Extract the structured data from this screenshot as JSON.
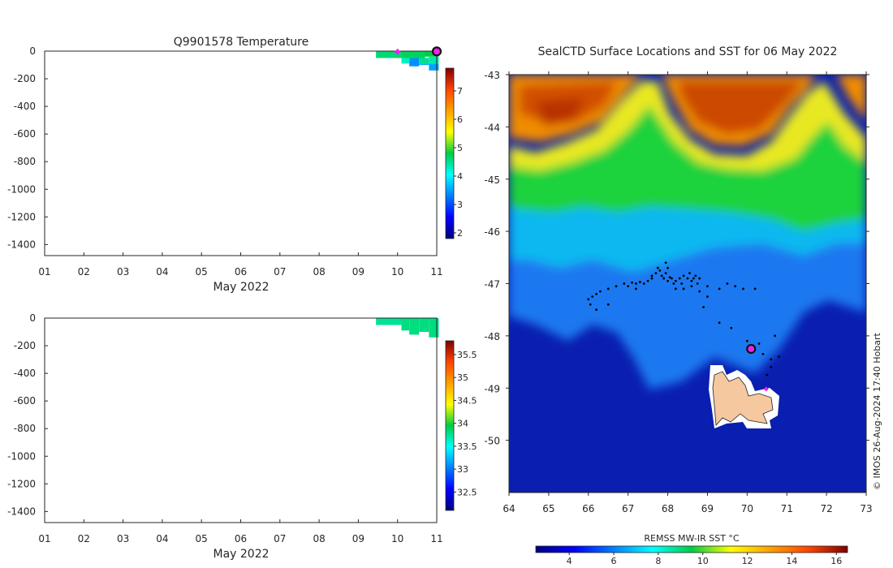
{
  "chart_data": [
    {
      "type": "heatmap",
      "name": "profile-temperature",
      "title": "Q9901578  Temperature",
      "xlabel": "May 2022",
      "x_ticks": [
        "01",
        "02",
        "03",
        "04",
        "05",
        "06",
        "07",
        "08",
        "09",
        "10",
        "11"
      ],
      "xlim": [
        1,
        11
      ],
      "ylim": [
        -1480,
        0
      ],
      "y_ticks": [
        "0",
        "-200",
        "-400",
        "-600",
        "-800",
        "-1000",
        "-1200",
        "-1400"
      ],
      "y_tick_values": [
        0,
        -200,
        -400,
        -600,
        -800,
        -1000,
        -1200,
        -1400
      ],
      "colorbar": {
        "range": [
          1.8,
          7.8
        ],
        "ticks": [
          "2",
          "3",
          "4",
          "5",
          "6",
          "7"
        ],
        "tick_values": [
          2,
          3,
          4,
          5,
          6,
          7
        ]
      },
      "cells": [
        {
          "x0": 9.45,
          "x1": 10.1,
          "y0": 0,
          "y1": -50,
          "value": 4.6
        },
        {
          "x0": 10.1,
          "x1": 10.7,
          "y0": 0,
          "y1": -50,
          "value": 4.7
        },
        {
          "x0": 10.7,
          "x1": 11.05,
          "y0": 0,
          "y1": -40,
          "value": 4.8
        },
        {
          "x0": 10.1,
          "x1": 10.3,
          "y0": -50,
          "y1": -90,
          "value": 4.3
        },
        {
          "x0": 10.3,
          "x1": 10.55,
          "y0": -50,
          "y1": -110,
          "value": 3.4
        },
        {
          "x0": 10.55,
          "x1": 10.8,
          "y0": -50,
          "y1": -90,
          "value": 4.5
        },
        {
          "x0": 10.8,
          "x1": 11.05,
          "y0": -40,
          "y1": -90,
          "value": 4.4
        },
        {
          "x0": 10.55,
          "x1": 10.8,
          "y0": -90,
          "y1": -100,
          "value": 3.6
        },
        {
          "x0": 10.8,
          "x1": 11.05,
          "y0": -90,
          "y1": -140,
          "value": 3.5
        }
      ],
      "markers": [
        {
          "x": 10.0,
          "y": -5,
          "kind": "start"
        },
        {
          "x": 11.0,
          "y": -2,
          "kind": "current"
        }
      ]
    },
    {
      "type": "heatmap",
      "name": "profile-salinity",
      "title": "",
      "xlabel": "May 2022",
      "x_ticks": [
        "01",
        "02",
        "03",
        "04",
        "05",
        "06",
        "07",
        "08",
        "09",
        "10",
        "11"
      ],
      "xlim": [
        1,
        11
      ],
      "ylim": [
        -1480,
        0
      ],
      "y_ticks": [
        "0",
        "-200",
        "-400",
        "-600",
        "-800",
        "-1000",
        "-1200",
        "-1400"
      ],
      "y_tick_values": [
        0,
        -200,
        -400,
        -600,
        -800,
        -1000,
        -1200,
        -1400
      ],
      "colorbar": {
        "range": [
          32.1,
          35.8
        ],
        "ticks": [
          "32.5",
          "33",
          "33.5",
          "34",
          "34.5",
          "35",
          "35.5"
        ],
        "tick_values": [
          32.5,
          33,
          33.5,
          34,
          34.5,
          35,
          35.5
        ]
      },
      "cells": [
        {
          "x0": 9.45,
          "x1": 10.1,
          "y0": 0,
          "y1": -50,
          "value": 33.75
        },
        {
          "x0": 10.1,
          "x1": 10.3,
          "y0": 0,
          "y1": -90,
          "value": 33.8
        },
        {
          "x0": 10.3,
          "x1": 10.55,
          "y0": 0,
          "y1": -120,
          "value": 33.8
        },
        {
          "x0": 10.55,
          "x1": 10.8,
          "y0": 0,
          "y1": -100,
          "value": 33.8
        },
        {
          "x0": 10.8,
          "x1": 11.05,
          "y0": 0,
          "y1": -140,
          "value": 33.8
        }
      ]
    },
    {
      "type": "heatmap",
      "name": "sst-map",
      "title": "SealCTD Surface Locations and SST for 06 May 2022",
      "xlim": [
        64,
        73
      ],
      "ylim": [
        -51,
        -43
      ],
      "x_ticks": [
        "64",
        "65",
        "66",
        "67",
        "68",
        "69",
        "70",
        "71",
        "72",
        "73"
      ],
      "x_tick_values": [
        64,
        65,
        66,
        67,
        68,
        69,
        70,
        71,
        72,
        73
      ],
      "y_ticks": [
        "-43",
        "-44",
        "-45",
        "-46",
        "-47",
        "-48",
        "-49",
        "-50"
      ],
      "y_tick_values": [
        -43,
        -44,
        -45,
        -46,
        -47,
        -48,
        -49,
        -50
      ],
      "colorbar": {
        "label": "REMSS MW-IR SST °C",
        "range": [
          2.5,
          16.5
        ],
        "ticks": [
          "4",
          "6",
          "8",
          "10",
          "12",
          "14",
          "16"
        ],
        "tick_values": [
          4,
          6,
          8,
          10,
          12,
          14,
          16
        ]
      },
      "track_points": [
        [
          66.0,
          -47.3
        ],
        [
          66.05,
          -47.4
        ],
        [
          66.1,
          -47.25
        ],
        [
          66.2,
          -47.2
        ],
        [
          66.3,
          -47.15
        ],
        [
          66.5,
          -47.1
        ],
        [
          66.7,
          -47.05
        ],
        [
          66.9,
          -47.0
        ],
        [
          67.1,
          -46.98
        ],
        [
          67.2,
          -47.0
        ],
        [
          67.3,
          -46.97
        ],
        [
          67.4,
          -47.0
        ],
        [
          67.5,
          -46.95
        ],
        [
          67.6,
          -46.9
        ],
        [
          67.7,
          -46.8
        ],
        [
          67.75,
          -46.7
        ],
        [
          67.8,
          -46.75
        ],
        [
          67.85,
          -46.85
        ],
        [
          67.9,
          -46.9
        ],
        [
          67.95,
          -46.8
        ],
        [
          68.0,
          -46.95
        ],
        [
          68.05,
          -46.88
        ],
        [
          68.1,
          -46.9
        ],
        [
          68.15,
          -47.0
        ],
        [
          68.2,
          -46.95
        ],
        [
          68.3,
          -46.9
        ],
        [
          68.35,
          -47.0
        ],
        [
          68.4,
          -46.85
        ],
        [
          68.5,
          -46.9
        ],
        [
          68.55,
          -46.8
        ],
        [
          68.6,
          -46.95
        ],
        [
          68.7,
          -46.85
        ],
        [
          68.75,
          -47.0
        ],
        [
          68.8,
          -46.9
        ],
        [
          67.95,
          -46.6
        ],
        [
          68.0,
          -46.7
        ],
        [
          68.2,
          -47.1
        ],
        [
          68.4,
          -47.1
        ],
        [
          68.8,
          -47.15
        ],
        [
          69.0,
          -47.05
        ],
        [
          69.3,
          -47.1
        ],
        [
          69.5,
          -47.0
        ],
        [
          69.7,
          -47.05
        ],
        [
          69.9,
          -47.1
        ],
        [
          70.2,
          -47.1
        ],
        [
          69.0,
          -47.25
        ],
        [
          68.9,
          -47.45
        ],
        [
          69.3,
          -47.75
        ],
        [
          69.6,
          -47.85
        ],
        [
          70.0,
          -48.1
        ],
        [
          70.3,
          -48.15
        ],
        [
          70.4,
          -48.35
        ],
        [
          70.6,
          -48.45
        ],
        [
          70.6,
          -48.6
        ],
        [
          70.5,
          -48.75
        ],
        [
          70.7,
          -48.0
        ],
        [
          70.8,
          -48.4
        ],
        [
          66.2,
          -47.5
        ],
        [
          66.5,
          -47.4
        ],
        [
          67.0,
          -47.05
        ],
        [
          67.2,
          -47.1
        ],
        [
          67.6,
          -46.85
        ],
        [
          68.6,
          -47.05
        ],
        [
          68.65,
          -46.9
        ]
      ],
      "markers": [
        {
          "lon": 70.1,
          "lat": -48.25,
          "kind": "current"
        },
        {
          "lon": 70.48,
          "lat": -49.02,
          "kind": "start"
        }
      ]
    }
  ],
  "credit": "© IMOS 26-Aug-2024 17:40 Hobart"
}
